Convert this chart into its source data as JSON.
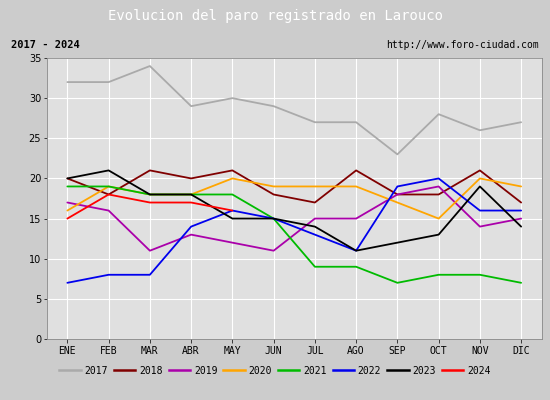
{
  "title": "Evolucion del paro registrado en Larouco",
  "subtitle_left": "2017 - 2024",
  "subtitle_right": "http://www.foro-ciudad.com",
  "months": [
    "ENE",
    "FEB",
    "MAR",
    "ABR",
    "MAY",
    "JUN",
    "JUL",
    "AGO",
    "SEP",
    "OCT",
    "NOV",
    "DIC"
  ],
  "ylim": [
    0,
    35
  ],
  "yticks": [
    0,
    5,
    10,
    15,
    20,
    25,
    30,
    35
  ],
  "series": {
    "2017": [
      32,
      32,
      34,
      29,
      30,
      29,
      27,
      27,
      23,
      28,
      26,
      27
    ],
    "2018": [
      20,
      18,
      21,
      20,
      21,
      18,
      17,
      21,
      18,
      18,
      21,
      17
    ],
    "2019": [
      17,
      16,
      11,
      13,
      12,
      11,
      15,
      15,
      18,
      19,
      14,
      15
    ],
    "2020": [
      16,
      19,
      18,
      18,
      20,
      19,
      19,
      19,
      17,
      15,
      20,
      19
    ],
    "2021": [
      19,
      19,
      18,
      18,
      18,
      15,
      9,
      9,
      7,
      8,
      8,
      7
    ],
    "2022": [
      7,
      8,
      8,
      14,
      16,
      15,
      13,
      11,
      19,
      20,
      16,
      16
    ],
    "2023": [
      20,
      21,
      18,
      18,
      15,
      15,
      14,
      11,
      12,
      13,
      19,
      14
    ],
    "2024": [
      15,
      18,
      17,
      17,
      16,
      null,
      null,
      null,
      null,
      null,
      null,
      null
    ]
  },
  "colors": {
    "2017": "#aaaaaa",
    "2018": "#800000",
    "2019": "#aa00aa",
    "2020": "#ffa500",
    "2021": "#00bb00",
    "2022": "#0000ee",
    "2023": "#000000",
    "2024": "#ff0000"
  },
  "background_color": "#cccccc",
  "plot_bg_color": "#e0e0e0",
  "title_bg_color": "#4472c4",
  "title_text_color": "#ffffff",
  "header_bg_color": "#f0f0f0",
  "grid_color": "#ffffff",
  "border_color": "#999999"
}
